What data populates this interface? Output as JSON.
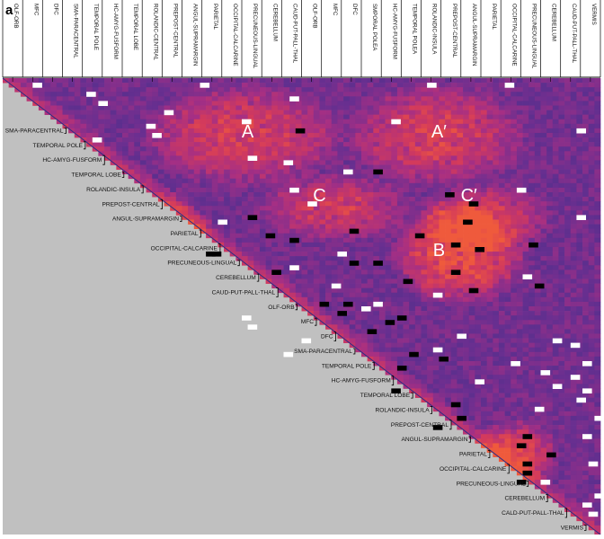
{
  "panel_label": "a",
  "chart_data": {
    "type": "heatmap",
    "title": "",
    "matrix_form": "upper-triangular",
    "colormap": [
      "#3a3088",
      "#6a2f90",
      "#a52f84",
      "#d33a5c",
      "#ef5a3c"
    ],
    "highlight_colors": {
      "high": "#ffffff",
      "low": "#000000"
    },
    "background_color": "#c0c0c0",
    "top_labels": [
      "OLF-ORB",
      "MFC",
      "DFC",
      "SMA-PARACENTRAL",
      "TEMPORAL POLE",
      "HC-AMYG-FUSFORM",
      "TEMPORAL LOBE",
      "ROLANDIC-CENTRAL",
      "PREPOST-CENTRAL",
      "ANGUL-SUPRAMARGIN",
      "PARIETAL",
      "OCCIPITAL-CALCARINE",
      "PRECUNEOUS-LINGUAL",
      "CEREBELLUM",
      "CAUD-PUT-PALL-THAL",
      "OLF-ORB",
      "MFC",
      "DFC",
      "SMPORAL POLEA",
      "HC-AMYG-FUSFORM",
      "TEMPORAL POLEA",
      "ROLANDIC-INSULA",
      "PREPOST-CENTRAL",
      "ANGUL-SUPRAMARGIN",
      "PARIETAL",
      "OCCIPITAL-CALCARINE",
      "PRECUNEOUS-LINGUAL",
      "CEREBELLUM",
      "CAUD-PUT-PALL-THAL",
      "VERMIS"
    ],
    "diagonal_labels": [
      "SMA-PARACENTRAL",
      "TEMPORAL POLE",
      "HC-AMYG-FUSFORM",
      "TEMPORAL LOBE",
      "ROLANDIC-INSULA",
      "PREPOST-CENTRAL",
      "ANGUL-SUPRAMARGIN",
      "PARIETAL",
      "OCCIPITAL-CALCARINE",
      "PRECUNEOUS-LINGUAL",
      "CEREBELLUM",
      "CAUD-PUT-PALL-THAL",
      "OLF-ORB",
      "MFC",
      "DFC",
      "SMA-PARACENTRAL",
      "TEMPORAL POLE",
      "HC-AMYG-FUSFORM",
      "TEMPORAL LOBE",
      "ROLANDIC-INSULA",
      "PREPOST-CENTRAL",
      "ANGUL-SUPRAMARGIN",
      "PARIETAL",
      "OCCIPITAL-CALCARINE",
      "PRECUNEOUS-LINGUAL",
      "CEREBELLUM",
      "CALD-PUT-PALL-THAL",
      "VERMIS"
    ],
    "annotations": [
      {
        "text": "A",
        "row": 0.13,
        "col": 0.41
      },
      {
        "text": "A′",
        "row": 0.13,
        "col": 0.73
      },
      {
        "text": "C",
        "row": 0.27,
        "col": 0.53
      },
      {
        "text": "C′",
        "row": 0.27,
        "col": 0.78
      },
      {
        "text": "B",
        "row": 0.39,
        "col": 0.73
      }
    ],
    "hotspots": [
      {
        "row": 0.12,
        "col": 0.4,
        "w": 0.18,
        "h": 0.12,
        "level": 0.55
      },
      {
        "row": 0.12,
        "col": 0.72,
        "w": 0.16,
        "h": 0.12,
        "level": 0.55
      },
      {
        "row": 0.28,
        "col": 0.55,
        "w": 0.14,
        "h": 0.08,
        "level": 0.5
      },
      {
        "row": 0.3,
        "col": 0.8,
        "w": 0.12,
        "h": 0.08,
        "level": 0.5
      },
      {
        "row": 0.38,
        "col": 0.76,
        "w": 0.12,
        "h": 0.12,
        "level": 0.75
      },
      {
        "row": 0.34,
        "col": 0.25,
        "w": 0.1,
        "h": 0.1,
        "level": 0.6
      },
      {
        "row": 0.82,
        "col": 0.85,
        "w": 0.08,
        "h": 0.08,
        "level": 0.65
      }
    ],
    "white_cells": [
      [
        0.01,
        0.05
      ],
      [
        0.01,
        0.33
      ],
      [
        0.01,
        0.71
      ],
      [
        0.01,
        0.84
      ],
      [
        0.03,
        0.14
      ],
      [
        0.04,
        0.48
      ],
      [
        0.05,
        0.16
      ],
      [
        0.07,
        0.27
      ],
      [
        0.09,
        0.4
      ],
      [
        0.09,
        0.65
      ],
      [
        0.1,
        0.24
      ],
      [
        0.11,
        0.96
      ],
      [
        0.12,
        0.25
      ],
      [
        0.13,
        0.15
      ],
      [
        0.17,
        0.41
      ],
      [
        0.18,
        0.47
      ],
      [
        0.2,
        0.57
      ],
      [
        0.24,
        0.48
      ],
      [
        0.24,
        0.86
      ],
      [
        0.27,
        0.51
      ],
      [
        0.31,
        0.36
      ],
      [
        0.38,
        0.56
      ],
      [
        0.41,
        0.48
      ],
      [
        0.43,
        0.87
      ],
      [
        0.45,
        0.55
      ],
      [
        0.47,
        0.72
      ],
      [
        0.49,
        0.62
      ],
      [
        0.5,
        0.6
      ],
      [
        0.52,
        0.4
      ],
      [
        0.54,
        0.41
      ],
      [
        0.56,
        0.76
      ],
      [
        0.57,
        0.5
      ],
      [
        0.59,
        0.72
      ],
      [
        0.6,
        0.47
      ],
      [
        0.62,
        0.85
      ],
      [
        0.62,
        0.97
      ],
      [
        0.64,
        0.9
      ],
      [
        0.65,
        0.95
      ],
      [
        0.67,
        0.92
      ],
      [
        0.68,
        0.97
      ],
      [
        0.7,
        0.96
      ],
      [
        0.72,
        0.89
      ],
      [
        0.74,
        0.99
      ],
      [
        0.78,
        0.97
      ],
      [
        0.84,
        0.98
      ],
      [
        0.88,
        0.9
      ],
      [
        0.91,
        0.99
      ],
      [
        0.93,
        0.97
      ],
      [
        0.95,
        0.98
      ],
      [
        0.66,
        0.79
      ],
      [
        0.3,
        0.96
      ],
      [
        0.57,
        0.92
      ],
      [
        0.58,
        0.95
      ]
    ],
    "black_cells": [
      [
        0.11,
        0.49
      ],
      [
        0.2,
        0.62
      ],
      [
        0.25,
        0.74
      ],
      [
        0.27,
        0.78
      ],
      [
        0.31,
        0.77
      ],
      [
        0.34,
        0.69
      ],
      [
        0.34,
        0.44
      ],
      [
        0.35,
        0.48
      ],
      [
        0.36,
        0.75
      ],
      [
        0.37,
        0.79
      ],
      [
        0.38,
        0.35
      ],
      [
        0.38,
        0.34
      ],
      [
        0.4,
        0.58
      ],
      [
        0.4,
        0.62
      ],
      [
        0.42,
        0.45
      ],
      [
        0.42,
        0.75
      ],
      [
        0.44,
        0.67
      ],
      [
        0.46,
        0.78
      ],
      [
        0.49,
        0.53
      ],
      [
        0.49,
        0.57
      ],
      [
        0.51,
        0.56
      ],
      [
        0.53,
        0.64
      ],
      [
        0.55,
        0.61
      ],
      [
        0.6,
        0.68
      ],
      [
        0.61,
        0.73
      ],
      [
        0.63,
        0.66
      ],
      [
        0.71,
        0.75
      ],
      [
        0.74,
        0.76
      ],
      [
        0.76,
        0.72
      ],
      [
        0.78,
        0.87
      ],
      [
        0.8,
        0.86
      ],
      [
        0.82,
        0.91
      ],
      [
        0.84,
        0.87
      ],
      [
        0.86,
        0.87
      ],
      [
        0.88,
        0.86
      ],
      [
        0.3,
        0.41
      ],
      [
        0.33,
        0.58
      ],
      [
        0.36,
        0.88
      ],
      [
        0.45,
        0.89
      ],
      [
        0.52,
        0.66
      ],
      [
        0.68,
        0.65
      ]
    ]
  }
}
